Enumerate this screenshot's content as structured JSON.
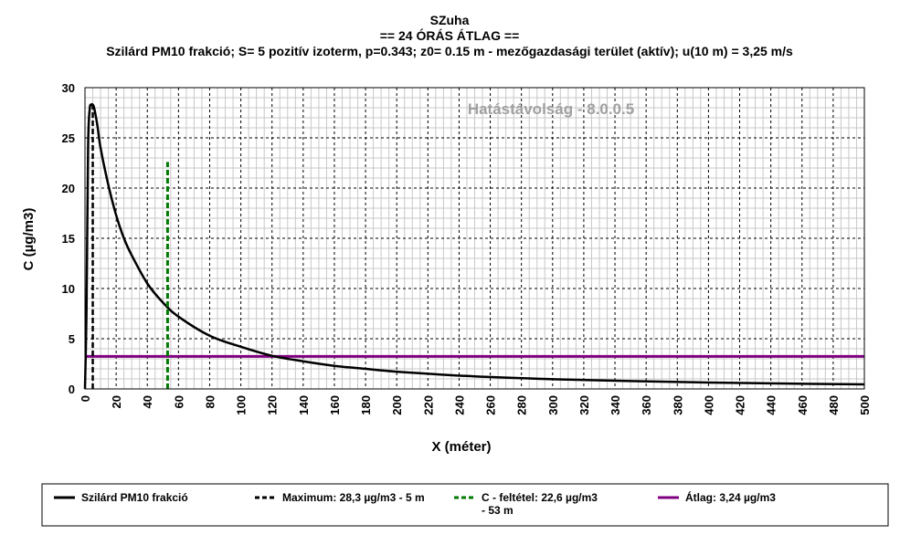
{
  "chart_data": {
    "type": "line",
    "title_lines": [
      "SZuha",
      "== 24 ÓRÁS ÁTLAG ==",
      "Szilárd PM10 frakció; S= 5 pozitív izoterm, p=0.343; z0= 0.15 m - mezőgazdasági terület (aktív); u(10 m) = 3,25 m/s"
    ],
    "watermark": "Hatástávolság  - 8.0.0.5",
    "xlabel": "X (méter)",
    "ylabel": "C (µg/m3)",
    "xlim": [
      0,
      500
    ],
    "ylim": [
      0,
      30
    ],
    "x_ticks": [
      0,
      20,
      40,
      60,
      80,
      100,
      120,
      140,
      160,
      180,
      200,
      220,
      240,
      260,
      280,
      300,
      320,
      340,
      360,
      380,
      400,
      420,
      440,
      460,
      480,
      500
    ],
    "y_ticks": [
      0,
      5,
      10,
      15,
      20,
      25,
      30
    ],
    "grid": true,
    "series": [
      {
        "name": "Szilárd PM10 frakció",
        "color": "#000000",
        "style": "solid",
        "x": [
          0,
          1,
          2,
          3,
          4,
          5,
          6,
          8,
          10,
          15,
          20,
          25,
          30,
          40,
          50,
          60,
          80,
          100,
          120,
          140,
          160,
          180,
          200,
          250,
          300,
          350,
          400,
          450,
          500
        ],
        "y": [
          0,
          8,
          24,
          27.8,
          28.3,
          28.3,
          27.9,
          26.2,
          24.0,
          20.3,
          17.3,
          15.0,
          13.3,
          10.5,
          8.6,
          7.2,
          5.3,
          4.2,
          3.3,
          2.75,
          2.3,
          2.0,
          1.72,
          1.25,
          0.97,
          0.78,
          0.64,
          0.53,
          0.45
        ]
      },
      {
        "name": "Maximum: 28,3 µg/m3 - 5 m",
        "color": "#000000",
        "style": "dashed",
        "x": [
          5,
          5
        ],
        "y": [
          0,
          28.3
        ]
      },
      {
        "name": "C - feltétel: 22,6 µg/m3 - 53 m",
        "color": "#007a00",
        "style": "dashed",
        "x": [
          53,
          53
        ],
        "y": [
          0,
          22.6
        ]
      },
      {
        "name": "Átlag: 3,24 µg/m3",
        "color": "#800080",
        "style": "solid",
        "x": [
          0,
          500
        ],
        "y": [
          3.24,
          3.24
        ]
      }
    ],
    "legend": {
      "placement": "bottom",
      "entries": [
        {
          "label_lines": [
            "Szilárd PM10 frakció"
          ]
        },
        {
          "label_lines": [
            "Maximum: 28,3 µg/m3 - 5 m"
          ]
        },
        {
          "label_lines": [
            "C - feltétel: 22,6 µg/m3",
            "- 53 m"
          ]
        },
        {
          "label_lines": [
            "Átlag: 3,24 µg/m3"
          ]
        }
      ]
    }
  }
}
